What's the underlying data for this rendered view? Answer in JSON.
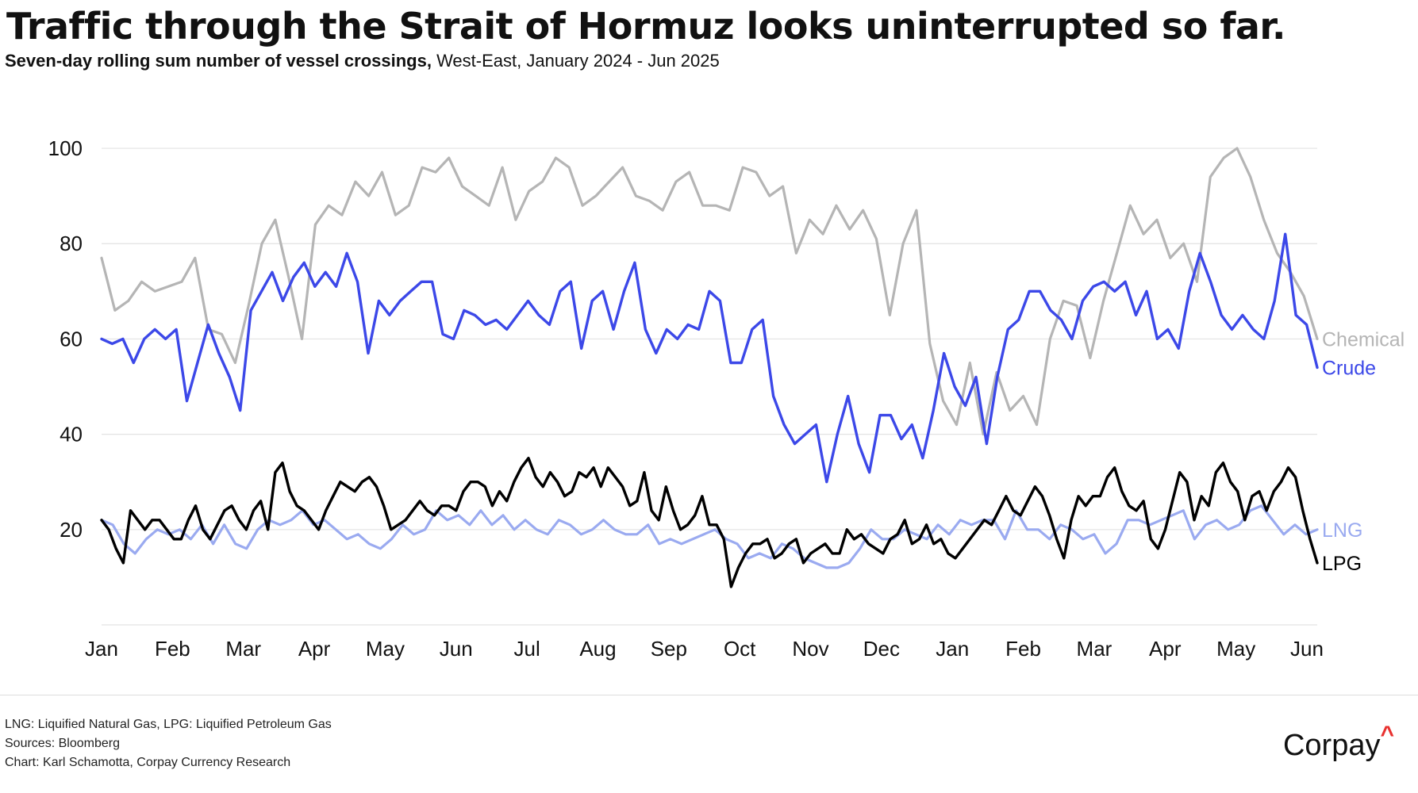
{
  "header": {
    "title": "Traffic through the Strait of Hormuz looks uninterrupted so far.",
    "subtitle_bold": "Seven-day rolling sum number of vessel crossings,",
    "subtitle_regular": " West-East, January 2024 - Jun 2025"
  },
  "footer": {
    "note": "LNG: Liquified Natural Gas, LPG: Liquified Petroleum Gas",
    "sources": "Sources: Bloomberg",
    "credit": "Chart: Karl Schamotta, Corpay Currency Research",
    "logo": "Corpay",
    "logo_mark": "^"
  },
  "colors": {
    "chemical": "#b5b5b5",
    "crude": "#3c48e8",
    "lng": "#9aaaf0",
    "lpg": "#000000",
    "grid": "#e3e3e3",
    "brand_accent": "#e8312f"
  },
  "chart_data": {
    "type": "line",
    "title": "Traffic through the Strait of Hormuz looks uninterrupted so far.",
    "x_range": [
      "2024-01",
      "2025-06"
    ],
    "month_labels": [
      "Jan",
      "Feb",
      "Mar",
      "Apr",
      "May",
      "Jun",
      "Jul",
      "Aug",
      "Sep",
      "Oct",
      "Nov",
      "Dec",
      "Jan",
      "Feb",
      "Mar",
      "Apr",
      "May",
      "Jun"
    ],
    "ylim": [
      0,
      105
    ],
    "yticks": [
      20,
      40,
      60,
      80,
      100
    ],
    "grid": true,
    "legend_placement": "right end labels",
    "series": [
      {
        "name": "Chemical",
        "color": "#b5b5b5",
        "values": [
          77,
          66,
          68,
          72,
          70,
          71,
          72,
          77,
          62,
          61,
          55,
          67,
          80,
          85,
          73,
          60,
          84,
          88,
          86,
          93,
          90,
          95,
          86,
          88,
          96,
          95,
          98,
          92,
          90,
          88,
          96,
          85,
          91,
          93,
          98,
          96,
          88,
          90,
          93,
          96,
          90,
          89,
          87,
          93,
          95,
          88,
          88,
          87,
          96,
          95,
          90,
          92,
          78,
          85,
          82,
          88,
          83,
          87,
          81,
          65,
          80,
          87,
          59,
          47,
          42,
          55,
          40,
          53,
          45,
          48,
          42,
          60,
          68,
          67,
          56,
          68,
          78,
          88,
          82,
          85,
          77,
          80,
          72,
          94,
          98,
          100,
          94,
          85,
          78,
          74,
          69,
          60
        ]
      },
      {
        "name": "Crude",
        "color": "#3c48e8",
        "values": [
          60,
          59,
          60,
          55,
          60,
          62,
          60,
          62,
          47,
          55,
          63,
          57,
          52,
          45,
          66,
          70,
          74,
          68,
          73,
          76,
          71,
          74,
          71,
          78,
          72,
          57,
          68,
          65,
          68,
          70,
          72,
          72,
          61,
          60,
          66,
          65,
          63,
          64,
          62,
          65,
          68,
          65,
          63,
          70,
          72,
          58,
          68,
          70,
          62,
          70,
          76,
          62,
          57,
          62,
          60,
          63,
          62,
          70,
          68,
          55,
          55,
          62,
          64,
          48,
          42,
          38,
          40,
          42,
          30,
          40,
          48,
          38,
          32,
          44,
          44,
          39,
          42,
          35,
          45,
          57,
          50,
          46,
          52,
          38,
          52,
          62,
          64,
          70,
          70,
          66,
          64,
          60,
          68,
          71,
          72,
          70,
          72,
          65,
          70,
          60,
          62,
          58,
          70,
          78,
          72,
          65,
          62,
          65,
          62,
          60,
          68,
          82,
          65,
          63,
          54
        ]
      },
      {
        "name": "LNG",
        "color": "#9aaaf0",
        "values": [
          22,
          21,
          17,
          15,
          18,
          20,
          19,
          20,
          18,
          21,
          17,
          21,
          17,
          16,
          20,
          22,
          21,
          22,
          24,
          21,
          22,
          20,
          18,
          19,
          17,
          16,
          18,
          21,
          19,
          20,
          24,
          22,
          23,
          21,
          24,
          21,
          23,
          20,
          22,
          20,
          19,
          22,
          21,
          19,
          20,
          22,
          20,
          19,
          19,
          21,
          17,
          18,
          17,
          18,
          19,
          20,
          18,
          17,
          14,
          15,
          14,
          17,
          16,
          14,
          13,
          12,
          12,
          13,
          16,
          20,
          18,
          18,
          20,
          19,
          18,
          21,
          19,
          22,
          21,
          22,
          22,
          18,
          24,
          20,
          20,
          18,
          21,
          20,
          18,
          19,
          15,
          17,
          22,
          22,
          21,
          22,
          23,
          24,
          18,
          21,
          22,
          20,
          21,
          24,
          25,
          22,
          19,
          21,
          19,
          20
        ]
      },
      {
        "name": "LPG",
        "color": "#000000",
        "values": [
          22,
          20,
          16,
          13,
          24,
          22,
          20,
          22,
          22,
          20,
          18,
          18,
          22,
          25,
          20,
          18,
          21,
          24,
          25,
          22,
          20,
          24,
          26,
          20,
          32,
          34,
          28,
          25,
          24,
          22,
          20,
          24,
          27,
          30,
          29,
          28,
          30,
          31,
          29,
          25,
          20,
          21,
          22,
          24,
          26,
          24,
          23,
          25,
          25,
          24,
          28,
          30,
          30,
          29,
          25,
          28,
          26,
          30,
          33,
          35,
          31,
          29,
          32,
          30,
          27,
          28,
          32,
          31,
          33,
          29,
          33,
          31,
          29,
          25,
          26,
          32,
          24,
          22,
          29,
          24,
          20,
          21,
          23,
          27,
          21,
          21,
          18,
          8,
          12,
          15,
          17,
          17,
          18,
          14,
          15,
          17,
          18,
          13,
          15,
          16,
          17,
          15,
          15,
          20,
          18,
          19,
          17,
          16,
          15,
          18,
          19,
          22,
          17,
          18,
          21,
          17,
          18,
          15,
          14,
          16,
          18,
          20,
          22,
          21,
          24,
          27,
          24,
          23,
          26,
          29,
          27,
          23,
          18,
          14,
          22,
          27,
          25,
          27,
          27,
          31,
          33,
          28,
          25,
          24,
          26,
          18,
          16,
          20,
          26,
          32,
          30,
          22,
          27,
          25,
          32,
          34,
          30,
          28,
          22,
          27,
          28,
          24,
          28,
          30,
          33,
          31,
          24,
          18,
          13
        ]
      }
    ]
  }
}
